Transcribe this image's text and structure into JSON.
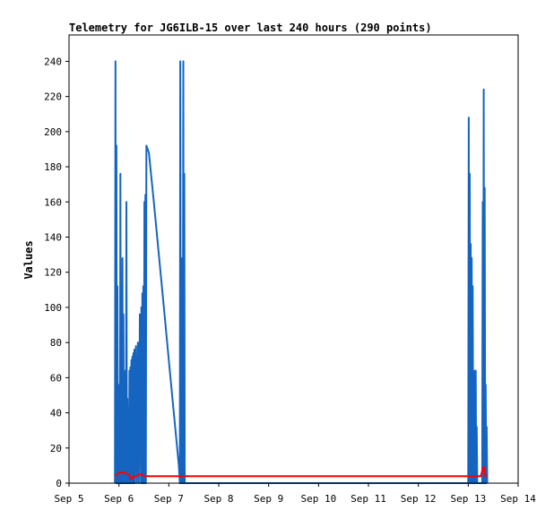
{
  "chart_data": {
    "type": "line",
    "title": "Telemetry for JG6ILB-15 over last 240 hours (290 points)",
    "xlabel": "",
    "ylabel": "Values",
    "x_ticks": [
      "Sep 5",
      "Sep 6",
      "Sep 7",
      "Sep 8",
      "Sep 9",
      "Sep 10",
      "Sep 11",
      "Sep 12",
      "Sep 13",
      "Sep 14"
    ],
    "xlim": [
      0,
      9
    ],
    "y_ticks": [
      0,
      20,
      40,
      60,
      80,
      100,
      120,
      140,
      160,
      180,
      200,
      220,
      240
    ],
    "ylim": [
      0,
      255
    ],
    "grid": false,
    "legend": "none",
    "series": [
      {
        "color": "#1565c0",
        "x": [
          0.92,
          0.93,
          0.94,
          0.95,
          0.96,
          0.97,
          0.98,
          0.99,
          1.0,
          1.01,
          1.02,
          1.03,
          1.04,
          1.05,
          1.06,
          1.07,
          1.08,
          1.09,
          1.1,
          1.11,
          1.12,
          1.13,
          1.14,
          1.15,
          1.16,
          1.17,
          1.18,
          1.19,
          1.2,
          1.21,
          1.22,
          1.23,
          1.24,
          1.25,
          1.26,
          1.27,
          1.28,
          1.29,
          1.3,
          1.31,
          1.32,
          1.34,
          1.36,
          1.38,
          1.4,
          1.42,
          1.44,
          1.45,
          1.46,
          1.47,
          1.48,
          1.49,
          1.5,
          1.51,
          1.52,
          1.53,
          1.54,
          1.55,
          1.6,
          1.7,
          1.8,
          1.9,
          2.0,
          2.1,
          2.2,
          2.22,
          2.23,
          2.24,
          2.25,
          2.26,
          2.27,
          2.28,
          2.29,
          2.3,
          2.31,
          2.32,
          2.33,
          2.34,
          2.35,
          8.0,
          8.01,
          8.02,
          8.03,
          8.04,
          8.05,
          8.06,
          8.07,
          8.08,
          8.09,
          8.1,
          8.11,
          8.12,
          8.13,
          8.14,
          8.15,
          8.16,
          8.17,
          8.18,
          8.19,
          8.2,
          8.22,
          8.24,
          8.26,
          8.28,
          8.29,
          8.3,
          8.31,
          8.32,
          8.33,
          8.34,
          8.35,
          8.36,
          8.37,
          8.38
        ],
        "values": [
          0,
          240,
          0,
          192,
          0,
          112,
          0,
          56,
          0,
          48,
          0,
          176,
          0,
          48,
          0,
          128,
          0,
          96,
          0,
          32,
          0,
          64,
          0,
          160,
          0,
          48,
          0,
          32,
          0,
          64,
          0,
          66,
          0,
          70,
          0,
          72,
          0,
          74,
          0,
          76,
          0,
          78,
          0,
          80,
          0,
          96,
          0,
          100,
          0,
          108,
          0,
          112,
          0,
          160,
          0,
          164,
          0,
          192,
          188,
          160,
          130,
          100,
          70,
          40,
          10,
          0,
          240,
          0,
          128,
          0,
          96,
          0,
          240,
          0,
          176,
          0,
          0,
          0,
          0,
          0,
          208,
          0,
          176,
          0,
          136,
          0,
          128,
          0,
          112,
          0,
          56,
          0,
          64,
          0,
          64,
          0,
          32,
          0,
          0,
          0,
          0,
          0,
          0,
          0,
          160,
          0,
          224,
          0,
          168,
          0,
          56,
          0,
          32,
          0
        ]
      },
      {
        "color": "#ff0000",
        "x": [
          0.92,
          1.0,
          1.1,
          1.2,
          1.25,
          1.3,
          1.35,
          1.4,
          1.45,
          1.5,
          1.6,
          2.0,
          3.0,
          4.0,
          5.0,
          6.0,
          7.0,
          8.0,
          8.1,
          8.2,
          8.25,
          8.3,
          8.32,
          8.34,
          8.36,
          8.38
        ],
        "values": [
          4,
          6,
          6,
          5,
          2,
          4,
          4,
          5,
          5,
          4,
          4,
          4,
          4,
          4,
          4,
          4,
          4,
          4,
          4,
          4,
          4,
          9,
          9,
          4,
          4,
          4
        ]
      }
    ]
  }
}
